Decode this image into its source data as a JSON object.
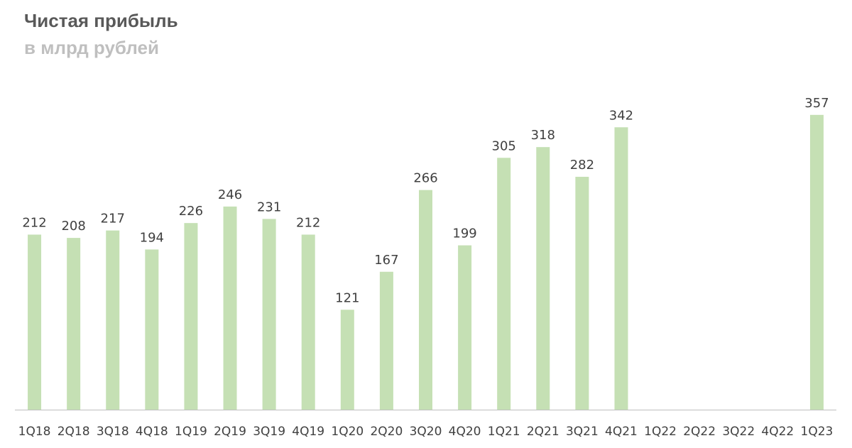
{
  "chart_data": {
    "type": "bar",
    "title": "Чистая прибыль",
    "subtitle": "в млрд рублей",
    "xlabel": "",
    "ylabel": "",
    "ylim": [
      0,
      400
    ],
    "grid": false,
    "legend": "none",
    "bar_color": "#c5e0b4",
    "categories": [
      "1Q18",
      "2Q18",
      "3Q18",
      "4Q18",
      "1Q19",
      "2Q19",
      "3Q19",
      "4Q19",
      "1Q20",
      "2Q20",
      "3Q20",
      "4Q20",
      "1Q21",
      "2Q21",
      "3Q21",
      "4Q21",
      "1Q22",
      "2Q22",
      "3Q22",
      "4Q22",
      "1Q23"
    ],
    "values": [
      212,
      208,
      217,
      194,
      226,
      246,
      231,
      212,
      121,
      167,
      266,
      199,
      305,
      318,
      282,
      342,
      null,
      null,
      null,
      null,
      357
    ]
  }
}
